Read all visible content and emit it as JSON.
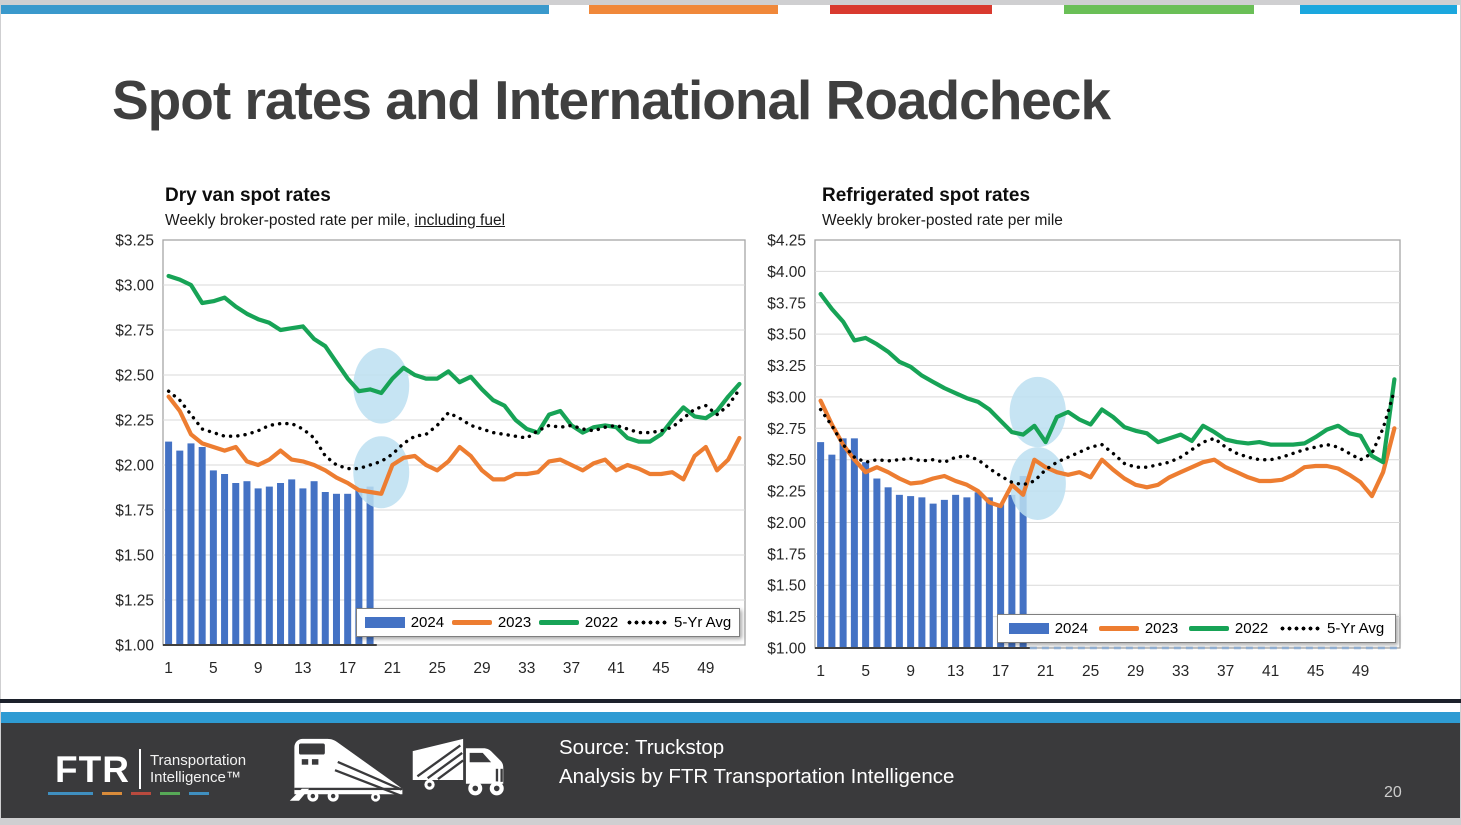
{
  "title": "Spot rates and International Roadcheck",
  "accent_bar": {
    "segments": [
      {
        "name": "blue",
        "color": "#3a99cc"
      },
      {
        "name": "orange",
        "color": "#f0883a"
      },
      {
        "name": "red",
        "color": "#d93a2f"
      },
      {
        "name": "green",
        "color": "#6abf57"
      },
      {
        "name": "cyan",
        "color": "#1ba7de"
      }
    ]
  },
  "chart_data": [
    {
      "type": "bar",
      "title": "Dry van spot rates",
      "subtitle": "Weekly broker-posted rate per mile, ",
      "subtitle_underline": "including fuel",
      "xlabel": "",
      "ylabel": "",
      "ylim": [
        1.0,
        3.25
      ],
      "ytick_step": 0.25,
      "ytick_prefix": "$",
      "xticks": [
        1,
        5,
        9,
        13,
        17,
        21,
        25,
        29,
        33,
        37,
        41,
        45,
        49
      ],
      "weeks": 52,
      "grid": true,
      "legend_position": "inside-bottom-right",
      "axis_dashed_after_bars": false,
      "series": [
        {
          "name": "2024",
          "type": "bar",
          "color": "#4472c4",
          "values": [
            2.13,
            2.08,
            2.12,
            2.1,
            1.97,
            1.95,
            1.9,
            1.91,
            1.87,
            1.88,
            1.9,
            1.92,
            1.87,
            1.91,
            1.85,
            1.84,
            1.84,
            1.86,
            1.88
          ]
        },
        {
          "name": "2023",
          "type": "line",
          "color": "#ed7d31",
          "values": [
            2.38,
            2.3,
            2.17,
            2.12,
            2.1,
            2.08,
            2.1,
            2.02,
            2.0,
            2.03,
            2.08,
            2.03,
            2.02,
            2.0,
            1.97,
            1.93,
            1.9,
            1.86,
            1.85,
            1.84,
            2.0,
            2.04,
            2.05,
            2.0,
            1.97,
            2.02,
            2.1,
            2.05,
            1.97,
            1.92,
            1.92,
            1.95,
            1.95,
            1.96,
            2.02,
            2.03,
            2.0,
            1.97,
            2.01,
            2.03,
            1.97,
            2.0,
            1.98,
            1.95,
            1.95,
            1.96,
            1.92,
            2.05,
            2.1,
            1.97,
            2.03,
            2.15
          ]
        },
        {
          "name": "2022",
          "type": "line",
          "color": "#17a356",
          "values": [
            3.05,
            3.03,
            3.0,
            2.9,
            2.91,
            2.93,
            2.88,
            2.84,
            2.81,
            2.79,
            2.75,
            2.76,
            2.77,
            2.7,
            2.66,
            2.57,
            2.48,
            2.41,
            2.42,
            2.4,
            2.48,
            2.54,
            2.5,
            2.48,
            2.48,
            2.52,
            2.46,
            2.49,
            2.42,
            2.36,
            2.33,
            2.25,
            2.2,
            2.18,
            2.28,
            2.3,
            2.22,
            2.18,
            2.21,
            2.22,
            2.21,
            2.15,
            2.13,
            2.13,
            2.17,
            2.25,
            2.32,
            2.27,
            2.26,
            2.3,
            2.38,
            2.45
          ]
        },
        {
          "name": "5-Yr Avg",
          "type": "dotted",
          "color": "#000000",
          "values": [
            2.41,
            2.36,
            2.28,
            2.2,
            2.18,
            2.16,
            2.16,
            2.17,
            2.19,
            2.22,
            2.23,
            2.23,
            2.2,
            2.15,
            2.05,
            2.0,
            1.98,
            1.98,
            2.0,
            2.02,
            2.06,
            2.12,
            2.16,
            2.17,
            2.22,
            2.29,
            2.26,
            2.22,
            2.2,
            2.18,
            2.17,
            2.16,
            2.15,
            2.19,
            2.22,
            2.21,
            2.22,
            2.2,
            2.19,
            2.21,
            2.22,
            2.2,
            2.18,
            2.18,
            2.19,
            2.21,
            2.26,
            2.31,
            2.33,
            2.28,
            2.33,
            2.42
          ]
        }
      ],
      "annotations": [
        {
          "shape": "ellipse",
          "x": 20.0,
          "y": 2.44,
          "rx_weeks": 2.5,
          "ry_value": 0.21,
          "color": "#bcdff1"
        },
        {
          "shape": "ellipse",
          "x": 20.0,
          "y": 1.96,
          "rx_weeks": 2.5,
          "ry_value": 0.2,
          "color": "#bcdff1"
        }
      ]
    },
    {
      "type": "bar",
      "title": "Refrigerated spot rates",
      "subtitle": "Weekly broker-posted rate per mile",
      "subtitle_underline": "",
      "xlabel": "",
      "ylabel": "",
      "ylim": [
        1.0,
        4.25
      ],
      "ytick_step": 0.25,
      "ytick_prefix": "$",
      "xticks": [
        1,
        5,
        9,
        13,
        17,
        21,
        25,
        29,
        33,
        37,
        41,
        45,
        49
      ],
      "weeks": 52,
      "grid": true,
      "legend_position": "inside-bottom-right",
      "axis_dashed_after_bars": true,
      "series": [
        {
          "name": "2024",
          "type": "bar",
          "color": "#4472c4",
          "values": [
            2.64,
            2.54,
            2.67,
            2.67,
            2.48,
            2.35,
            2.28,
            2.22,
            2.21,
            2.2,
            2.15,
            2.18,
            2.22,
            2.2,
            2.24,
            2.2,
            2.15,
            2.22,
            2.37
          ]
        },
        {
          "name": "2023",
          "type": "line",
          "color": "#ed7d31",
          "values": [
            2.97,
            2.78,
            2.62,
            2.5,
            2.4,
            2.44,
            2.4,
            2.35,
            2.31,
            2.32,
            2.35,
            2.37,
            2.33,
            2.3,
            2.25,
            2.16,
            2.13,
            2.3,
            2.22,
            2.5,
            2.44,
            2.4,
            2.38,
            2.4,
            2.36,
            2.5,
            2.42,
            2.35,
            2.3,
            2.28,
            2.3,
            2.36,
            2.4,
            2.44,
            2.48,
            2.5,
            2.44,
            2.4,
            2.36,
            2.33,
            2.33,
            2.34,
            2.38,
            2.44,
            2.45,
            2.45,
            2.43,
            2.38,
            2.32,
            2.21,
            2.4,
            2.75
          ]
        },
        {
          "name": "2022",
          "type": "line",
          "color": "#17a356",
          "values": [
            3.82,
            3.7,
            3.6,
            3.45,
            3.47,
            3.42,
            3.36,
            3.28,
            3.24,
            3.17,
            3.12,
            3.07,
            3.03,
            2.99,
            2.96,
            2.9,
            2.81,
            2.72,
            2.7,
            2.77,
            2.64,
            2.84,
            2.88,
            2.82,
            2.78,
            2.9,
            2.84,
            2.76,
            2.73,
            2.71,
            2.64,
            2.67,
            2.7,
            2.65,
            2.77,
            2.72,
            2.66,
            2.64,
            2.63,
            2.64,
            2.62,
            2.62,
            2.62,
            2.63,
            2.68,
            2.74,
            2.77,
            2.71,
            2.69,
            2.53,
            2.48,
            3.14
          ]
        },
        {
          "name": "5-Yr Avg",
          "type": "dotted",
          "color": "#000000",
          "values": [
            2.9,
            2.77,
            2.62,
            2.52,
            2.48,
            2.5,
            2.49,
            2.5,
            2.51,
            2.49,
            2.5,
            2.48,
            2.52,
            2.53,
            2.5,
            2.43,
            2.37,
            2.32,
            2.3,
            2.33,
            2.42,
            2.48,
            2.52,
            2.56,
            2.6,
            2.62,
            2.55,
            2.47,
            2.44,
            2.44,
            2.46,
            2.48,
            2.52,
            2.58,
            2.64,
            2.67,
            2.6,
            2.55,
            2.52,
            2.5,
            2.5,
            2.52,
            2.55,
            2.58,
            2.6,
            2.62,
            2.6,
            2.55,
            2.5,
            2.55,
            2.75,
            3.05
          ]
        }
      ],
      "annotations": [
        {
          "shape": "ellipse",
          "x": 20.3,
          "y": 2.88,
          "rx_weeks": 2.5,
          "ry_value": 0.28,
          "color": "#bcdff1"
        },
        {
          "shape": "ellipse",
          "x": 20.3,
          "y": 2.31,
          "rx_weeks": 2.5,
          "ry_value": 0.29,
          "color": "#bcdff1"
        }
      ]
    }
  ],
  "footer": {
    "logo_main": "FTR",
    "logo_sub1": "Transportation",
    "logo_sub2": "Intelligence™",
    "logo_dash_colors": [
      "#3f8fc0",
      "#d98b3a",
      "#b94a3e",
      "#57a957",
      "#3f8fc0"
    ],
    "source_line1": "Source: Truckstop",
    "source_line2": "Analysis by FTR Transportation Intelligence",
    "page_number": "20"
  }
}
